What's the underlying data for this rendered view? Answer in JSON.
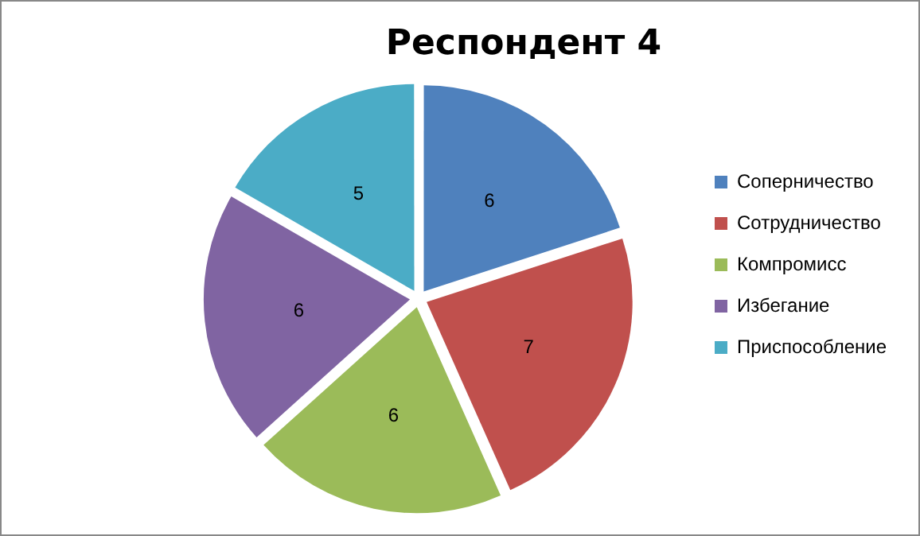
{
  "chart_data": {
    "type": "pie",
    "title": "Респондент 4",
    "categories": [
      "Соперничество",
      "Сотрудничество",
      "Компромисс",
      "Избегание",
      "Приспособление"
    ],
    "values": [
      6,
      7,
      6,
      6,
      5
    ],
    "colors": [
      "#4f81bd",
      "#c0504d",
      "#9bbb59",
      "#8064a2",
      "#4bacc6"
    ],
    "data_labels": true,
    "legend": "right"
  }
}
